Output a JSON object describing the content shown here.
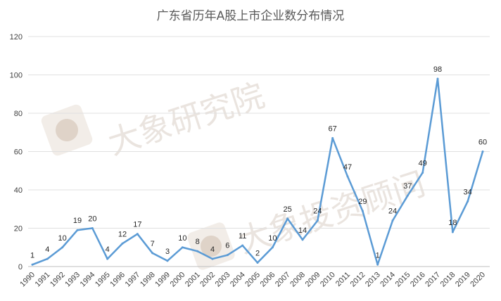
{
  "chart_data": {
    "type": "line",
    "title": "广东省历年A股上市企业数分布情况",
    "xlabel": "",
    "ylabel": "",
    "ylim": [
      0,
      120
    ],
    "yticks": [
      0,
      20,
      40,
      60,
      80,
      100,
      120
    ],
    "grid": true,
    "legend": "none",
    "categories": [
      "1990",
      "1991",
      "1992",
      "1993",
      "1994",
      "1995",
      "1996",
      "1997",
      "1998",
      "1999",
      "2000",
      "2001",
      "2002",
      "2003",
      "2004",
      "2005",
      "2006",
      "2007",
      "2008",
      "2009",
      "2010",
      "2011",
      "2012",
      "2013",
      "2014",
      "2015",
      "2016",
      "2017",
      "2018",
      "2019",
      "2020"
    ],
    "series": [
      {
        "values": [
          1,
          4,
          10,
          19,
          20,
          4,
          12,
          17,
          7,
          3,
          10,
          8,
          4,
          6,
          11,
          2,
          10,
          25,
          14,
          24,
          67,
          47,
          29,
          1,
          24,
          37,
          49,
          98,
          18,
          34,
          60
        ],
        "color": "#5b9bd5"
      }
    ]
  },
  "watermark": {
    "text1": "大象研究院",
    "text2": "大象投资顾问"
  }
}
